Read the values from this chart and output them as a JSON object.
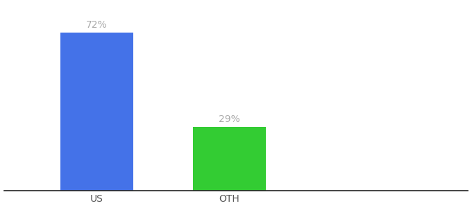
{
  "categories": [
    "US",
    "OTH"
  ],
  "values": [
    72,
    29
  ],
  "bar_colors": [
    "#4472e8",
    "#33cc33"
  ],
  "ylim": [
    0,
    85
  ],
  "background_color": "#ffffff",
  "label_color": "#aaaaaa",
  "label_fontsize": 10,
  "tick_fontsize": 10,
  "tick_color": "#555555",
  "bar_width": 0.55,
  "spine_color": "#222222",
  "x_positions": [
    1,
    2
  ],
  "xlim": [
    0.3,
    3.8
  ]
}
